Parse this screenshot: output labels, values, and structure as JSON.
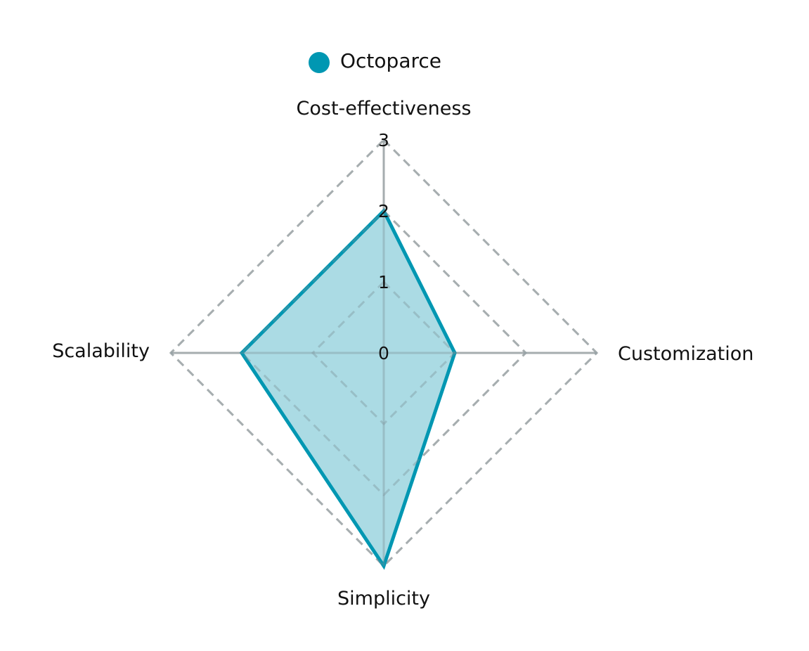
{
  "chart_data": {
    "type": "radar",
    "title": "",
    "axes": [
      "Cost-effectiveness",
      "Customization",
      "Simplicity",
      "Scalability"
    ],
    "range": [
      0,
      3
    ],
    "ticks": [
      0,
      1,
      2,
      3
    ],
    "grid": true,
    "grid_style": "dashed",
    "legend": {
      "position": "top",
      "entries": [
        "Octoparce"
      ]
    },
    "series": [
      {
        "name": "Octoparce",
        "values": [
          2,
          1,
          3,
          2
        ],
        "color": "#0097B2",
        "fill": "#A6D9E3"
      }
    ],
    "colors": {
      "axis_line": "#BDBDBD",
      "grid_line": "#BDBDBD"
    }
  }
}
